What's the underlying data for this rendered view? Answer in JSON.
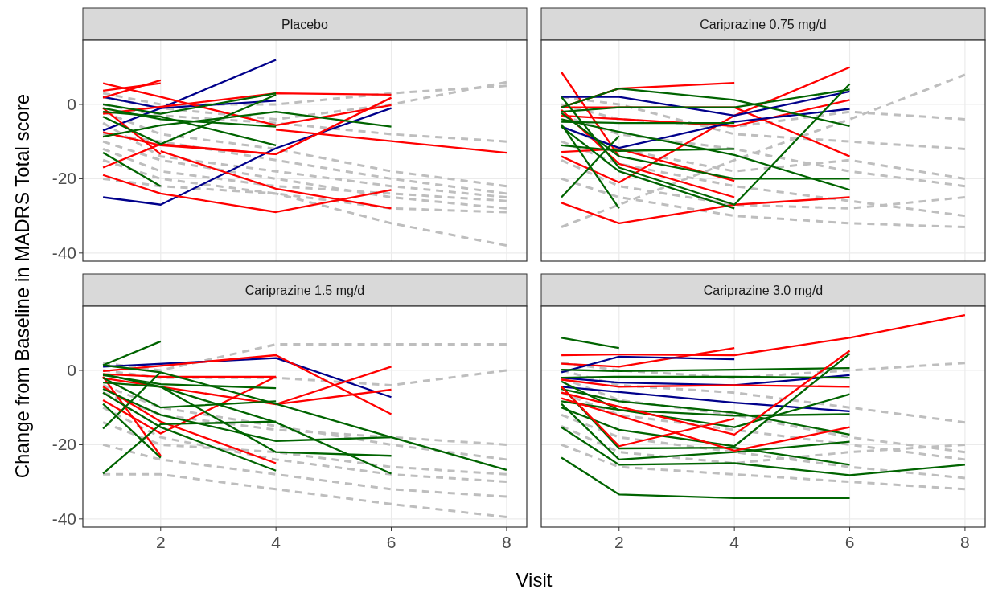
{
  "chart_data": [
    {
      "type": "line",
      "title": "Placebo",
      "ylabel": "Change from Baseline in MADRS Total score",
      "xlim": [
        0.65,
        8.35
      ],
      "ylim": [
        -42.2,
        17.3
      ],
      "xticks": [
        2,
        4,
        6,
        8
      ],
      "yticks": [
        -40,
        -20,
        0
      ],
      "grid": true,
      "tick_labels": "y",
      "line_style": "solid",
      "series": [
        {
          "color": "#bebebe",
          "line_style": "dashed",
          "x": [
            1,
            2,
            4,
            6,
            8
          ],
          "values": [
            -2,
            -8,
            -12,
            -18,
            -22
          ]
        },
        {
          "color": "#bebebe",
          "line_style": "dashed",
          "x": [
            1,
            2,
            4,
            6,
            8
          ],
          "values": [
            -10,
            -15,
            -20,
            -25,
            -28
          ]
        },
        {
          "color": "#bebebe",
          "line_style": "dashed",
          "x": [
            1,
            2,
            4,
            6,
            8
          ],
          "values": [
            -5,
            -14,
            -18,
            -22,
            -25
          ]
        },
        {
          "color": "#bebebe",
          "line_style": "dashed",
          "x": [
            1,
            2,
            4,
            6,
            8
          ],
          "values": [
            0,
            -3,
            -5,
            -8,
            -10
          ]
        },
        {
          "color": "#bebebe",
          "line_style": "dashed",
          "x": [
            1,
            2,
            4,
            6,
            8
          ],
          "values": [
            3,
            0,
            0,
            3,
            5
          ]
        },
        {
          "color": "#bebebe",
          "line_style": "dashed",
          "x": [
            1,
            2,
            4,
            6,
            8
          ],
          "values": [
            -15,
            -20,
            -24,
            -28,
            -29
          ]
        },
        {
          "color": "#bebebe",
          "line_style": "dashed",
          "x": [
            1,
            2,
            4,
            6,
            8
          ],
          "values": [
            -20,
            -22,
            -24,
            -32,
            -38
          ]
        },
        {
          "color": "#bebebe",
          "line_style": "dashed",
          "x": [
            1,
            2,
            4,
            6,
            8
          ],
          "values": [
            2,
            -1,
            -4,
            0,
            6
          ]
        },
        {
          "color": "#bebebe",
          "line_style": "dashed",
          "x": [
            1,
            2,
            4,
            6,
            8
          ],
          "values": [
            -8,
            -10,
            -15,
            -20,
            -24
          ]
        },
        {
          "color": "#bebebe",
          "line_style": "dashed",
          "x": [
            1,
            2,
            4,
            6,
            8
          ],
          "values": [
            -12,
            -18,
            -22,
            -24,
            -26
          ]
        },
        {
          "color": "#00008b",
          "x": [
            1,
            2,
            4,
            6
          ],
          "values": [
            -25,
            -27,
            -11.8,
            -1
          ]
        },
        {
          "color": "#00008b",
          "x": [
            1,
            2,
            4
          ],
          "values": [
            -7,
            -1,
            12
          ]
        },
        {
          "color": "#00008b",
          "x": [
            1,
            2,
            4
          ],
          "values": [
            2,
            -1,
            1
          ]
        },
        {
          "color": "#ff0000",
          "x": [
            1,
            2,
            4,
            6
          ],
          "values": [
            5.7,
            2,
            -5.6,
            -0.2
          ]
        },
        {
          "color": "#ff0000",
          "x": [
            1,
            2
          ],
          "values": [
            1.8,
            6.5
          ]
        },
        {
          "color": "#ff0000",
          "x": [
            1,
            2
          ],
          "values": [
            3.7,
            5.7
          ]
        },
        {
          "color": "#ff0000",
          "x": [
            1,
            2,
            4,
            6
          ],
          "values": [
            -7.5,
            -11,
            -13.4,
            1.8
          ]
        },
        {
          "color": "#ff0000",
          "x": [
            1,
            2,
            4
          ],
          "values": [
            -17,
            -10.7,
            -13.4
          ]
        },
        {
          "color": "#ff0000",
          "x": [
            1,
            2,
            4,
            6
          ],
          "values": [
            -19,
            -24,
            -29,
            -23
          ]
        },
        {
          "color": "#ff0000",
          "x": [
            1,
            2
          ],
          "values": [
            -1,
            -13.4
          ]
        },
        {
          "color": "#ff0000",
          "x": [
            2,
            4,
            6
          ],
          "values": [
            -12.6,
            -22.7,
            -28
          ]
        },
        {
          "color": "#ff0000",
          "x": [
            1,
            4,
            6
          ],
          "values": [
            -2.5,
            3,
            2.6
          ]
        },
        {
          "color": "#ff0000",
          "x": [
            4,
            6,
            8
          ],
          "values": [
            -6.8,
            -9.9,
            -13
          ]
        },
        {
          "color": "#006400",
          "x": [
            1,
            2,
            4
          ],
          "values": [
            0,
            -2.5,
            3
          ]
        },
        {
          "color": "#006400",
          "x": [
            1,
            2,
            4,
            6
          ],
          "values": [
            -8.7,
            -5.6,
            -2,
            -6
          ]
        },
        {
          "color": "#006400",
          "x": [
            1,
            2,
            4
          ],
          "values": [
            -3.3,
            -10.7,
            2.6
          ]
        },
        {
          "color": "#006400",
          "x": [
            1,
            2,
            4
          ],
          "values": [
            -2,
            -3.3,
            -11
          ]
        },
        {
          "color": "#006400",
          "x": [
            1,
            2
          ],
          "values": [
            -13,
            -22
          ]
        },
        {
          "color": "#006400",
          "x": [
            1,
            2,
            4
          ],
          "values": [
            -1,
            -4,
            -6
          ]
        }
      ]
    },
    {
      "type": "line",
      "title": "Cariprazine 0.75 mg/d",
      "xlim": [
        0.65,
        8.35
      ],
      "ylim": [
        -42.2,
        17.3
      ],
      "xticks": [
        2,
        4,
        6,
        8
      ],
      "yticks": [
        -40,
        -20,
        0
      ],
      "grid": true,
      "tick_labels": false,
      "line_style": "solid",
      "series": [
        {
          "color": "#bebebe",
          "line_style": "dashed",
          "x": [
            1,
            2,
            4,
            6,
            8
          ],
          "values": [
            -33,
            -27,
            -15,
            -4,
            8
          ]
        },
        {
          "color": "#bebebe",
          "line_style": "dashed",
          "x": [
            1,
            2,
            4,
            6,
            8
          ],
          "values": [
            -3,
            -8,
            -12,
            -18,
            -22
          ]
        },
        {
          "color": "#bebebe",
          "line_style": "dashed",
          "x": [
            1,
            2,
            4,
            6,
            8
          ],
          "values": [
            -10,
            -16,
            -22,
            -26,
            -30
          ]
        },
        {
          "color": "#bebebe",
          "line_style": "dashed",
          "x": [
            1,
            2,
            4,
            6,
            8
          ],
          "values": [
            -20,
            -25,
            -30,
            -32,
            -33
          ]
        },
        {
          "color": "#bebebe",
          "line_style": "dashed",
          "x": [
            1,
            2,
            4,
            6,
            8
          ],
          "values": [
            0,
            -4,
            -6,
            -2,
            -4
          ]
        },
        {
          "color": "#bebebe",
          "line_style": "dashed",
          "x": [
            1,
            2,
            4,
            6,
            8
          ],
          "values": [
            -6,
            -12,
            -18,
            -15,
            -20
          ]
        },
        {
          "color": "#bebebe",
          "line_style": "dashed",
          "x": [
            1,
            2,
            4,
            6,
            8
          ],
          "values": [
            -15,
            -22,
            -27,
            -28,
            -25
          ]
        },
        {
          "color": "#bebebe",
          "line_style": "dashed",
          "x": [
            1,
            2,
            4,
            6,
            8
          ],
          "values": [
            2,
            0,
            -8,
            -10,
            -12
          ]
        },
        {
          "color": "#ff0000",
          "x": [
            1,
            2
          ],
          "values": [
            8.7,
            -14
          ]
        },
        {
          "color": "#ff0000",
          "x": [
            1,
            2,
            4,
            6
          ],
          "values": [
            -26.5,
            -32,
            -27,
            -25
          ]
        },
        {
          "color": "#ff0000",
          "x": [
            1,
            2,
            4,
            6
          ],
          "values": [
            -14,
            -21,
            -3,
            10
          ]
        },
        {
          "color": "#ff0000",
          "x": [
            1,
            2,
            4
          ],
          "values": [
            -0.8,
            4.3,
            5.8
          ]
        },
        {
          "color": "#ff0000",
          "x": [
            1,
            2,
            4
          ],
          "values": [
            -12.8,
            -12,
            -20.6
          ]
        },
        {
          "color": "#ff0000",
          "x": [
            1,
            2,
            4
          ],
          "values": [
            -1.5,
            -16,
            -25
          ]
        },
        {
          "color": "#ff0000",
          "x": [
            1,
            2,
            4,
            6
          ],
          "values": [
            -0.8,
            -0.8,
            -0.8,
            -14
          ]
        },
        {
          "color": "#ff0000",
          "x": [
            1,
            4,
            6
          ],
          "values": [
            -3,
            -5.8,
            1.2
          ]
        },
        {
          "color": "#00008b",
          "x": [
            1,
            2,
            4,
            6
          ],
          "values": [
            2,
            2,
            -3,
            3.5
          ]
        },
        {
          "color": "#00008b",
          "x": [
            1,
            2,
            4,
            6
          ],
          "values": [
            -6,
            -11.7,
            -4.7,
            -1.2
          ]
        },
        {
          "color": "#006400",
          "x": [
            1,
            2,
            4,
            6
          ],
          "values": [
            2,
            -17,
            -27,
            5.5
          ]
        },
        {
          "color": "#006400",
          "x": [
            1,
            2,
            4,
            6
          ],
          "values": [
            -0.8,
            4.3,
            1.2,
            -5.8
          ]
        },
        {
          "color": "#006400",
          "x": [
            1,
            2
          ],
          "values": [
            -25,
            -8.5
          ]
        },
        {
          "color": "#006400",
          "x": [
            1,
            2
          ],
          "values": [
            -5.4,
            -28
          ]
        },
        {
          "color": "#006400",
          "x": [
            1,
            2,
            4,
            6
          ],
          "values": [
            -2.3,
            -14,
            -20,
            -20
          ]
        },
        {
          "color": "#006400",
          "x": [
            1,
            2,
            4
          ],
          "values": [
            -11,
            -12.5,
            -12
          ]
        },
        {
          "color": "#006400",
          "x": [
            1,
            2,
            4,
            6
          ],
          "values": [
            -4,
            -7.4,
            -13.6,
            -23
          ]
        },
        {
          "color": "#006400",
          "x": [
            1,
            2,
            4
          ],
          "values": [
            -6,
            -18,
            -28
          ]
        },
        {
          "color": "#006400",
          "x": [
            1,
            2,
            4,
            6
          ],
          "values": [
            -2,
            -0.8,
            -0.8,
            4
          ]
        },
        {
          "color": "#006400",
          "x": [
            1,
            2,
            4
          ],
          "values": [
            -4.7,
            -5,
            -5
          ]
        }
      ]
    },
    {
      "type": "line",
      "title": "Cariprazine 1.5 mg/d",
      "xlabel": "Visit",
      "xlim": [
        0.65,
        8.35
      ],
      "ylim": [
        -42.2,
        17.3
      ],
      "xticks": [
        2,
        4,
        6,
        8
      ],
      "yticks": [
        -40,
        -20,
        0
      ],
      "grid": true,
      "line_style": "solid",
      "series": [
        {
          "color": "#bebebe",
          "line_style": "dashed",
          "x": [
            1,
            2,
            4,
            6,
            8
          ],
          "values": [
            2,
            0,
            7,
            7,
            7
          ]
        },
        {
          "color": "#bebebe",
          "line_style": "dashed",
          "x": [
            1,
            2,
            4,
            6,
            8
          ],
          "values": [
            -28,
            -28,
            -32,
            -36,
            -39.5
          ]
        },
        {
          "color": "#bebebe",
          "line_style": "dashed",
          "x": [
            1,
            2,
            4,
            6,
            8
          ],
          "values": [
            -4,
            -10,
            -15,
            -20,
            -24
          ]
        },
        {
          "color": "#bebebe",
          "line_style": "dashed",
          "x": [
            1,
            2,
            4,
            6,
            8
          ],
          "values": [
            -10,
            -18,
            -24,
            -28,
            -30
          ]
        },
        {
          "color": "#bebebe",
          "line_style": "dashed",
          "x": [
            1,
            2,
            4,
            6,
            8
          ],
          "values": [
            -20,
            -24,
            -28,
            -32,
            -34
          ]
        },
        {
          "color": "#bebebe",
          "line_style": "dashed",
          "x": [
            1,
            2,
            4,
            6,
            8
          ],
          "values": [
            0,
            -2,
            -2,
            -4,
            0
          ]
        },
        {
          "color": "#bebebe",
          "line_style": "dashed",
          "x": [
            1,
            2,
            4,
            6,
            8
          ],
          "values": [
            -6,
            -12,
            -16,
            -18,
            -20
          ]
        },
        {
          "color": "#bebebe",
          "line_style": "dashed",
          "x": [
            1,
            2,
            4,
            6,
            8
          ],
          "values": [
            -14,
            -20,
            -22,
            -26,
            -28
          ]
        },
        {
          "color": "#006400",
          "x": [
            1,
            2
          ],
          "values": [
            1.4,
            7.8
          ]
        },
        {
          "color": "#00008b",
          "x": [
            1,
            4,
            6
          ],
          "values": [
            1,
            3.3,
            -7.2
          ]
        },
        {
          "color": "#ff0000",
          "x": [
            1,
            4,
            6
          ],
          "values": [
            -0.2,
            4.1,
            -11.8
          ]
        },
        {
          "color": "#ff0000",
          "x": [
            4,
            6
          ],
          "values": [
            -9.1,
            1
          ]
        },
        {
          "color": "#ff0000",
          "x": [
            1,
            2,
            4,
            6
          ],
          "values": [
            -2.1,
            -4.4,
            -9.1,
            -5.2
          ]
        },
        {
          "color": "#ff0000",
          "x": [
            1,
            2,
            4
          ],
          "values": [
            -8,
            -17,
            -1.7
          ]
        },
        {
          "color": "#ff0000",
          "x": [
            1,
            2
          ],
          "values": [
            -1.7,
            -23
          ]
        },
        {
          "color": "#ff0000",
          "x": [
            1,
            2,
            4
          ],
          "values": [
            -4.4,
            -13.8,
            -25
          ]
        },
        {
          "color": "#ff0000",
          "x": [
            1,
            2,
            4
          ],
          "values": [
            -1,
            -1.7,
            -1.7
          ]
        },
        {
          "color": "#006400",
          "x": [
            1,
            2,
            4,
            6,
            8
          ],
          "values": [
            1.4,
            -0.5,
            -9,
            -18,
            -26.8
          ]
        },
        {
          "color": "#006400",
          "x": [
            1,
            2,
            4
          ],
          "values": [
            -27.8,
            -14.5,
            -13.8
          ]
        },
        {
          "color": "#006400",
          "x": [
            1,
            2
          ],
          "values": [
            -9,
            -23.5
          ]
        },
        {
          "color": "#006400",
          "x": [
            1,
            2
          ],
          "values": [
            -15.7,
            -0.5
          ]
        },
        {
          "color": "#006400",
          "x": [
            1,
            2,
            4
          ],
          "values": [
            -2,
            -10,
            -8.3
          ]
        },
        {
          "color": "#006400",
          "x": [
            1,
            2,
            4,
            6
          ],
          "values": [
            -5,
            -12,
            -19,
            -18
          ]
        },
        {
          "color": "#006400",
          "x": [
            1,
            2,
            4,
            6
          ],
          "values": [
            -1,
            -4.4,
            -22,
            -23
          ]
        },
        {
          "color": "#006400",
          "x": [
            1,
            2,
            4
          ],
          "values": [
            -6,
            -15.3,
            -27
          ]
        },
        {
          "color": "#006400",
          "x": [
            1,
            2,
            4,
            6
          ],
          "values": [
            -3.3,
            -4.4,
            -14,
            -27.8
          ]
        },
        {
          "color": "#006400",
          "x": [
            1,
            2,
            4
          ],
          "values": [
            -1.3,
            -3.7,
            -4.8
          ]
        }
      ]
    },
    {
      "type": "line",
      "title": "Cariprazine 3.0 mg/d",
      "xlim": [
        0.65,
        8.35
      ],
      "ylim": [
        -42.2,
        17.3
      ],
      "xticks": [
        2,
        4,
        6,
        8
      ],
      "yticks": [
        -40,
        -20,
        0
      ],
      "grid": true,
      "tick_labels": "x",
      "line_style": "solid",
      "series": [
        {
          "color": "#bebebe",
          "line_style": "dashed",
          "x": [
            1,
            2,
            4,
            6,
            8
          ],
          "values": [
            -2,
            -8,
            -12,
            -18,
            -22
          ]
        },
        {
          "color": "#bebebe",
          "line_style": "dashed",
          "x": [
            1,
            2,
            4,
            6,
            8
          ],
          "values": [
            -12,
            -18,
            -22,
            -26,
            -29
          ]
        },
        {
          "color": "#bebebe",
          "line_style": "dashed",
          "x": [
            1,
            2,
            4,
            6,
            8
          ],
          "values": [
            -20,
            -26,
            -28,
            -30,
            -32
          ]
        },
        {
          "color": "#bebebe",
          "line_style": "dashed",
          "x": [
            1,
            2,
            4,
            6,
            8
          ],
          "values": [
            0,
            -4,
            -6,
            -10,
            -14
          ]
        },
        {
          "color": "#bebebe",
          "line_style": "dashed",
          "x": [
            1,
            2,
            4,
            6,
            8
          ],
          "values": [
            -6,
            -12,
            -16,
            -20,
            -24
          ]
        },
        {
          "color": "#bebebe",
          "line_style": "dashed",
          "x": [
            1,
            2,
            4,
            6,
            8
          ],
          "values": [
            2,
            0,
            -2,
            0,
            2
          ]
        },
        {
          "color": "#bebebe",
          "line_style": "dashed",
          "x": [
            1,
            2,
            4,
            6,
            8
          ],
          "values": [
            -15,
            -22,
            -25,
            -22,
            -20
          ]
        },
        {
          "color": "#ff0000",
          "x": [
            1,
            2,
            4,
            6,
            8
          ],
          "values": [
            4.1,
            4.3,
            4.1,
            8.8,
            14.9
          ]
        },
        {
          "color": "#ff0000",
          "x": [
            1,
            2,
            4
          ],
          "values": [
            1.8,
            1,
            6
          ]
        },
        {
          "color": "#006400",
          "x": [
            1,
            2
          ],
          "values": [
            8.8,
            6
          ]
        },
        {
          "color": "#00008b",
          "x": [
            1,
            2,
            4
          ],
          "values": [
            -0.5,
            3.7,
            3
          ]
        },
        {
          "color": "#00008b",
          "x": [
            1,
            2,
            4,
            6
          ],
          "values": [
            -2,
            -3.3,
            -4,
            -1.3
          ]
        },
        {
          "color": "#00008b",
          "x": [
            1,
            4,
            6
          ],
          "values": [
            -4.4,
            -8.7,
            -11
          ]
        },
        {
          "color": "#006400",
          "x": [
            1,
            2,
            4,
            6
          ],
          "values": [
            -23.5,
            -33.4,
            -34.4,
            -34.4
          ]
        },
        {
          "color": "#006400",
          "x": [
            1,
            2,
            4,
            6,
            8
          ],
          "values": [
            -15.3,
            -25.4,
            -25,
            -28.2,
            -25.4
          ]
        },
        {
          "color": "#006400",
          "x": [
            1,
            2,
            4,
            6
          ],
          "values": [
            -9,
            -24,
            -22,
            -19.2
          ]
        },
        {
          "color": "#006400",
          "x": [
            1,
            2,
            4,
            6
          ],
          "values": [
            -4.4,
            -21,
            -20.8,
            -25.4
          ]
        },
        {
          "color": "#006400",
          "x": [
            1,
            2,
            4,
            6
          ],
          "values": [
            -10,
            -16,
            -20.4,
            4.5
          ]
        },
        {
          "color": "#006400",
          "x": [
            1,
            2,
            4,
            6
          ],
          "values": [
            0.2,
            -0.2,
            0.2,
            0.6
          ]
        },
        {
          "color": "#006400",
          "x": [
            1,
            2,
            4,
            6
          ],
          "values": [
            -2,
            -1.7,
            -1.7,
            -2
          ]
        },
        {
          "color": "#006400",
          "x": [
            1,
            2,
            4,
            6
          ],
          "values": [
            -5,
            -8.3,
            -11.4,
            -17.3
          ]
        },
        {
          "color": "#006400",
          "x": [
            1,
            2,
            4,
            6
          ],
          "values": [
            -3,
            -10.7,
            -12.2,
            -11.8
          ]
        },
        {
          "color": "#006400",
          "x": [
            1,
            4,
            6
          ],
          "values": [
            -8.3,
            -15.3,
            -6.4
          ]
        },
        {
          "color": "#ff0000",
          "x": [
            1,
            2,
            4
          ],
          "values": [
            -4.4,
            -20.4,
            -13
          ]
        },
        {
          "color": "#ff0000",
          "x": [
            1,
            2,
            4,
            6
          ],
          "values": [
            -7.5,
            -12.2,
            -21.6,
            -15.3
          ]
        },
        {
          "color": "#ff0000",
          "x": [
            1,
            4,
            6
          ],
          "values": [
            -6,
            -17.3,
            5.3
          ]
        },
        {
          "color": "#ff0000",
          "x": [
            1,
            2,
            4,
            6
          ],
          "values": [
            -2.5,
            -4.4,
            -4,
            -4.4
          ]
        }
      ]
    }
  ]
}
